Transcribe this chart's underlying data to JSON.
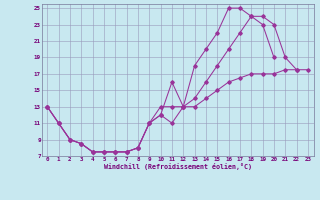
{
  "xlabel": "Windchill (Refroidissement éolien,°C)",
  "bg_color": "#c8e8f0",
  "grid_color": "#9999bb",
  "line_color": "#993399",
  "xlim": [
    -0.5,
    23.5
  ],
  "ylim": [
    7,
    25.5
  ],
  "yticks": [
    7,
    9,
    11,
    13,
    15,
    17,
    19,
    21,
    23,
    25
  ],
  "xticks": [
    0,
    1,
    2,
    3,
    4,
    5,
    6,
    7,
    8,
    9,
    10,
    11,
    12,
    13,
    14,
    15,
    16,
    17,
    18,
    19,
    20,
    21,
    22,
    23
  ],
  "curve1_x": [
    0,
    1,
    2,
    3,
    4,
    5,
    6,
    7,
    8,
    9,
    10,
    11,
    12,
    13,
    14,
    15,
    16,
    17,
    18,
    19,
    20
  ],
  "curve1_y": [
    13,
    11,
    9,
    8.5,
    7.5,
    7.5,
    7.5,
    7.5,
    8,
    11,
    12,
    16,
    13,
    18,
    20,
    22,
    25,
    25,
    24,
    23,
    19
  ],
  "curve2_x": [
    0,
    1,
    2,
    3,
    4,
    5,
    6,
    7,
    8,
    9,
    10,
    11,
    12,
    13,
    14,
    15,
    16,
    17,
    18,
    19,
    20,
    21,
    22
  ],
  "curve2_y": [
    13,
    11,
    9,
    8.5,
    7.5,
    7.5,
    7.5,
    7.5,
    8,
    11,
    12,
    11,
    13,
    14,
    16,
    18,
    20,
    22,
    24,
    24,
    23,
    19,
    17.5
  ],
  "curve3_x": [
    0,
    1,
    2,
    3,
    4,
    5,
    6,
    7,
    8,
    9,
    10,
    11,
    12,
    13,
    14,
    15,
    16,
    17,
    18,
    19,
    20,
    21,
    22,
    23
  ],
  "curve3_y": [
    13,
    11,
    9,
    8.5,
    7.5,
    7.5,
    7.5,
    7.5,
    8,
    11,
    13,
    13,
    13,
    13,
    14,
    15,
    16,
    16.5,
    17,
    17,
    17,
    17.5,
    17.5,
    17.5
  ]
}
